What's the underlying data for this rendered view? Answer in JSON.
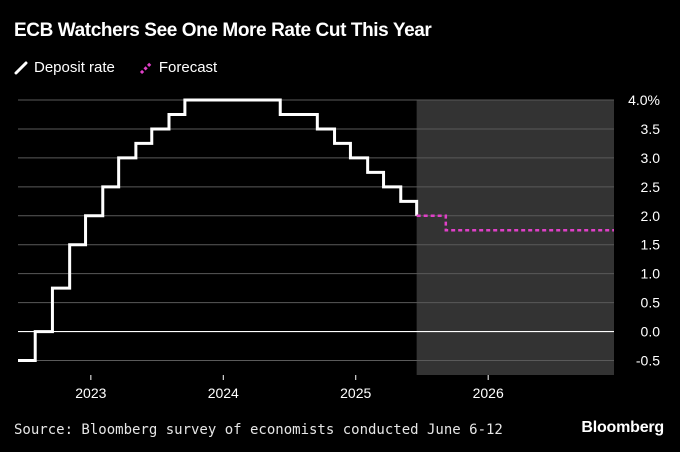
{
  "chart_data": {
    "type": "line",
    "title": "ECB Watchers See One More Rate Cut This Year",
    "legend": [
      {
        "name": "Deposit rate",
        "color": "#ffffff",
        "style": "solid"
      },
      {
        "name": "Forecast",
        "color": "#e040c8",
        "style": "dashed"
      }
    ],
    "y_ticks": [
      "4.0%",
      "3.5",
      "3.0",
      "2.5",
      "2.0",
      "1.5",
      "1.0",
      "0.5",
      "0.0",
      "-0.5"
    ],
    "ylim": [
      -0.75,
      4.0
    ],
    "x_ticks": [
      "2023",
      "2024",
      "2025",
      "2026"
    ],
    "xlim": [
      2022.45,
      2026.95
    ],
    "shaded_region": {
      "from": 2025.46,
      "to": 2026.95,
      "color": "#333333"
    },
    "series": [
      {
        "name": "Deposit rate",
        "step": true,
        "points": [
          [
            2022.45,
            -0.5
          ],
          [
            2022.58,
            0.0
          ],
          [
            2022.71,
            0.75
          ],
          [
            2022.84,
            1.5
          ],
          [
            2022.96,
            2.0
          ],
          [
            2023.09,
            2.5
          ],
          [
            2023.21,
            3.0
          ],
          [
            2023.34,
            3.25
          ],
          [
            2023.46,
            3.5
          ],
          [
            2023.59,
            3.75
          ],
          [
            2023.71,
            4.0
          ],
          [
            2024.43,
            3.75
          ],
          [
            2024.71,
            3.5
          ],
          [
            2024.84,
            3.25
          ],
          [
            2024.96,
            3.0
          ],
          [
            2025.09,
            2.75
          ],
          [
            2025.21,
            2.5
          ],
          [
            2025.34,
            2.25
          ],
          [
            2025.46,
            2.0
          ]
        ]
      },
      {
        "name": "Forecast",
        "step": true,
        "points": [
          [
            2025.46,
            2.0
          ],
          [
            2025.68,
            1.75
          ],
          [
            2026.95,
            1.75
          ]
        ]
      }
    ]
  },
  "footer": {
    "source": "Source: Bloomberg survey of economists conducted June 6-12",
    "brand": "Bloomberg"
  }
}
